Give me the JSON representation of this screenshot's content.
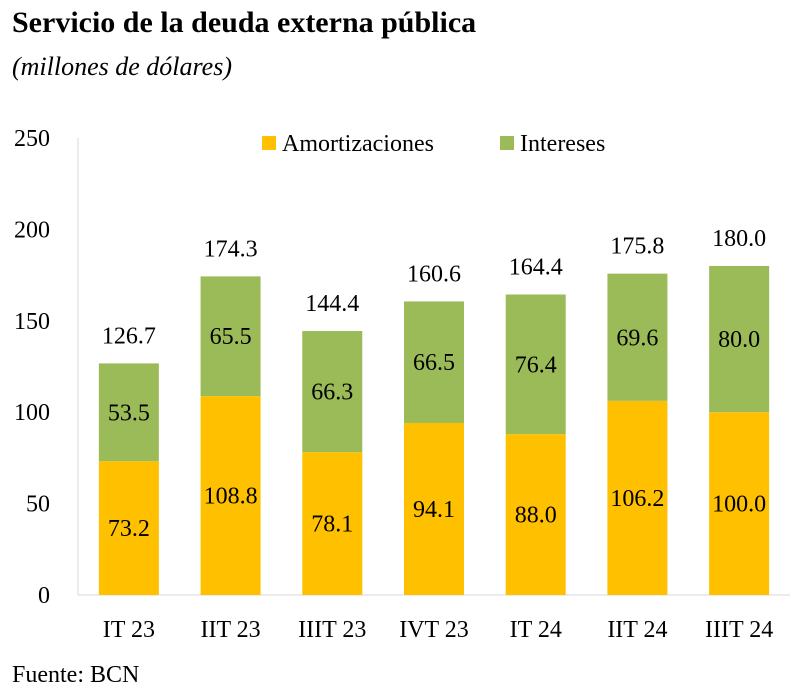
{
  "title": "Servicio de la deuda externa pública",
  "subtitle": "(millones de dólares)",
  "source": "Fuente: BCN",
  "chart_data": {
    "type": "bar",
    "stacked": true,
    "categories": [
      "IT 23",
      "IIT 23",
      "IIIT 23",
      "IVT 23",
      "IT 24",
      "IIT 24",
      "IIIT 24"
    ],
    "series": [
      {
        "name": "Amortizaciones",
        "color": "#FFC000",
        "values": [
          73.2,
          108.8,
          78.1,
          94.1,
          88.0,
          106.2,
          100.0
        ],
        "labels": [
          "73.2",
          "108.8",
          "78.1",
          "94.1",
          "88.0",
          "106.2",
          "100.0"
        ]
      },
      {
        "name": "Intereses",
        "color": "#9BBB59",
        "values": [
          53.5,
          65.5,
          66.3,
          66.5,
          76.4,
          69.6,
          80.0
        ],
        "labels": [
          "53.5",
          "65.5",
          "66.3",
          "66.5",
          "76.4",
          "69.6",
          "80.0"
        ]
      }
    ],
    "totals": [
      "126.7",
      "174.3",
      "144.4",
      "160.6",
      "164.4",
      "175.8",
      "180.0"
    ],
    "ylim": [
      0,
      250
    ],
    "yticks": [
      "0",
      "50",
      "100",
      "150",
      "200",
      "250"
    ],
    "grid": false,
    "legend": "top"
  }
}
